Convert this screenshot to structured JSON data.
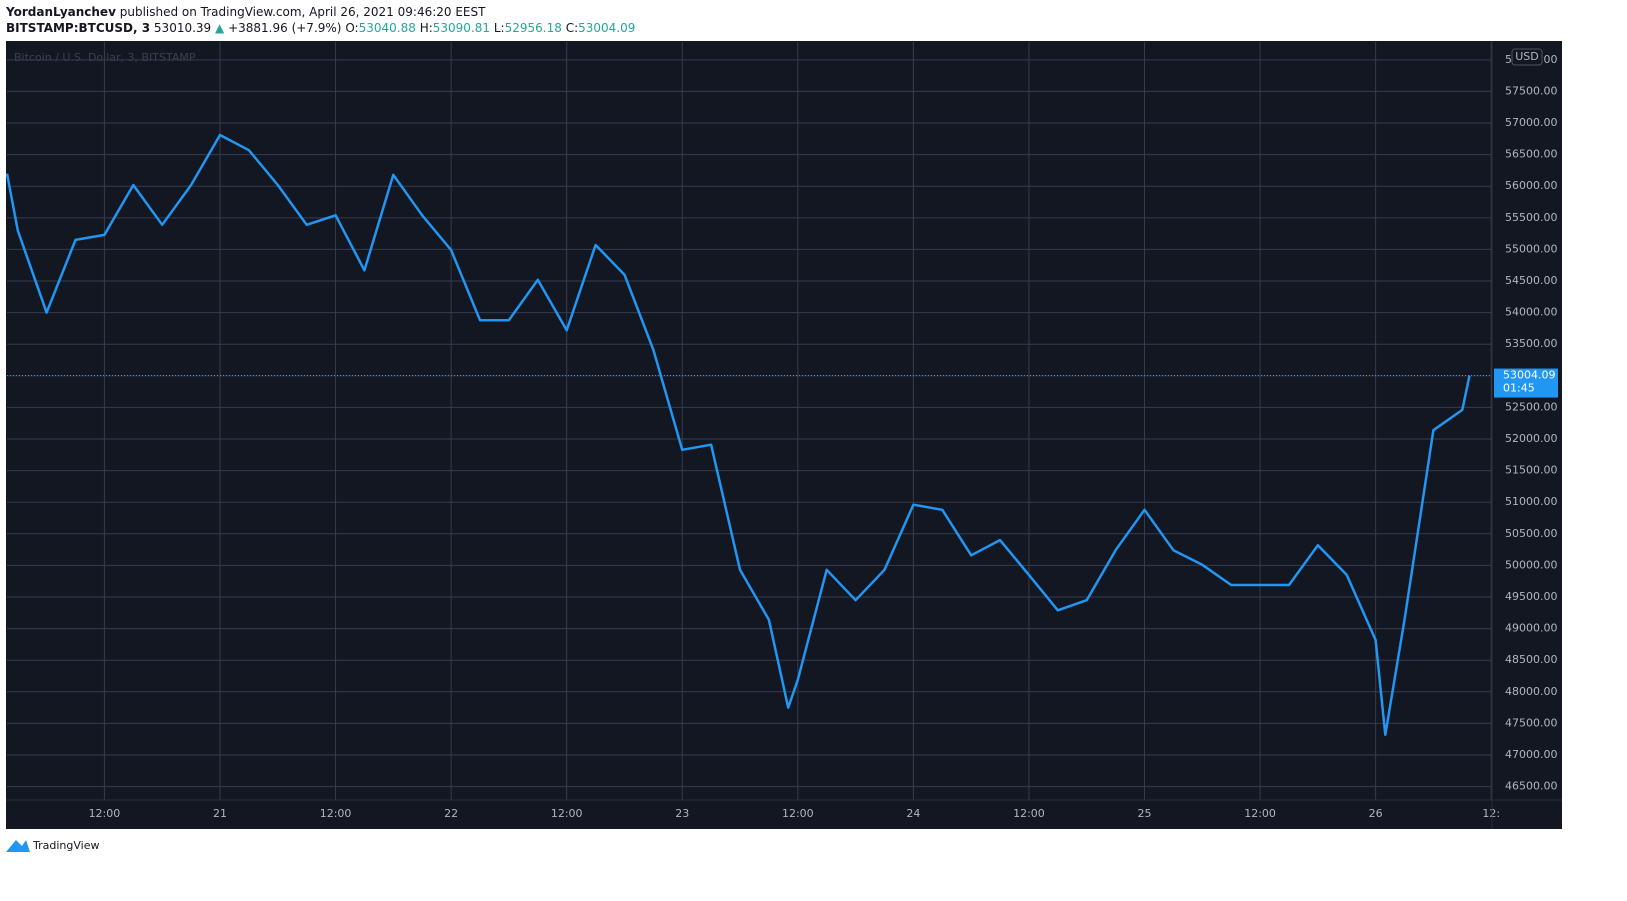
{
  "header": {
    "author": "YordanLyanchev",
    "published": "published on TradingView.com, April 26, 2021 09:46:20 EEST",
    "symbol": "BITSTAMP:BTCUSD, 3",
    "last": "53010.39",
    "arrow": "▲",
    "change": "+3881.96 (+7.9%)",
    "open_label": "O:",
    "open": "53040.88",
    "high_label": "H:",
    "high": "53090.81",
    "low_label": "L:",
    "low": "52956.18",
    "close_label": "C:",
    "close": "53004.09"
  },
  "chart_data": {
    "type": "line",
    "watermark": "Bitcoin / U.S. Dollar, 3, BITSTAMP",
    "currency": "USD",
    "countdown": "01:45",
    "brand": "TradingView",
    "background": "#131722",
    "grid": true,
    "grid_color": "#363c4e",
    "xlim": [
      "2021-04-20T01:53",
      "2021-04-26T12:05"
    ],
    "xticks": [
      {
        "value": "2021-04-20T12:00",
        "label": "12:00"
      },
      {
        "value": "2021-04-21T00:00",
        "label": "21"
      },
      {
        "value": "2021-04-21T12:00",
        "label": "12:00"
      },
      {
        "value": "2021-04-22T00:00",
        "label": "22"
      },
      {
        "value": "2021-04-22T12:00",
        "label": "12:00"
      },
      {
        "value": "2021-04-23T00:00",
        "label": "23"
      },
      {
        "value": "2021-04-23T12:00",
        "label": "12:00"
      },
      {
        "value": "2021-04-24T00:00",
        "label": "24"
      },
      {
        "value": "2021-04-24T12:00",
        "label": "12:00"
      },
      {
        "value": "2021-04-25T00:00",
        "label": "25"
      },
      {
        "value": "2021-04-25T12:00",
        "label": "12:00"
      },
      {
        "value": "2021-04-26T00:00",
        "label": "26"
      },
      {
        "value": "2021-04-26T12:00",
        "label": "12:"
      }
    ],
    "ylim": [
      46288,
      58282
    ],
    "yticks": [
      {
        "value": 46500,
        "label": "46500.00"
      },
      {
        "value": 47000,
        "label": "47000.00"
      },
      {
        "value": 47500,
        "label": "47500.00"
      },
      {
        "value": 48000,
        "label": "48000.00"
      },
      {
        "value": 48500,
        "label": "48500.00"
      },
      {
        "value": 49000,
        "label": "49000.00"
      },
      {
        "value": 49500,
        "label": "49500.00"
      },
      {
        "value": 50000,
        "label": "50000.00"
      },
      {
        "value": 50500,
        "label": "50500.00"
      },
      {
        "value": 51000,
        "label": "51000.00"
      },
      {
        "value": 51500,
        "label": "51500.00"
      },
      {
        "value": 52000,
        "label": "52000.00"
      },
      {
        "value": 52500,
        "label": "52500.00"
      },
      {
        "value": 53000,
        "label": "53000.00"
      },
      {
        "value": 53500,
        "label": "53500.00"
      },
      {
        "value": 54000,
        "label": "54000.00"
      },
      {
        "value": 54500,
        "label": "54500.00"
      },
      {
        "value": 55000,
        "label": "55000.00"
      },
      {
        "value": 55500,
        "label": "55500.00"
      },
      {
        "value": 56000,
        "label": "56000.00"
      },
      {
        "value": 56500,
        "label": "56500.00"
      },
      {
        "value": 57000,
        "label": "57000.00"
      },
      {
        "value": 57500,
        "label": "57500.00"
      },
      {
        "value": 58000,
        "label": "58000.00"
      }
    ],
    "series": [
      {
        "name": "BTCUSD",
        "color": "#2196f3",
        "x": [
          "2021-04-20T01:53",
          "2021-04-20T03:00",
          "2021-04-20T06:00",
          "2021-04-20T09:00",
          "2021-04-20T12:00",
          "2021-04-20T15:00",
          "2021-04-20T18:00",
          "2021-04-20T21:00",
          "2021-04-21T00:00",
          "2021-04-21T03:00",
          "2021-04-21T06:00",
          "2021-04-21T09:00",
          "2021-04-21T12:00",
          "2021-04-21T15:00",
          "2021-04-21T18:00",
          "2021-04-21T21:00",
          "2021-04-22T00:00",
          "2021-04-22T03:00",
          "2021-04-22T06:00",
          "2021-04-22T09:00",
          "2021-04-22T12:00",
          "2021-04-22T15:00",
          "2021-04-22T18:00",
          "2021-04-22T21:00",
          "2021-04-23T00:00",
          "2021-04-23T03:00",
          "2021-04-23T06:00",
          "2021-04-23T09:00",
          "2021-04-23T11:00",
          "2021-04-23T12:00",
          "2021-04-23T15:00",
          "2021-04-23T18:00",
          "2021-04-23T21:00",
          "2021-04-24T00:00",
          "2021-04-24T03:00",
          "2021-04-24T06:00",
          "2021-04-24T09:00",
          "2021-04-24T12:00",
          "2021-04-24T15:00",
          "2021-04-24T18:00",
          "2021-04-24T21:00",
          "2021-04-25T00:00",
          "2021-04-25T03:00",
          "2021-04-25T06:00",
          "2021-04-25T09:00",
          "2021-04-25T12:00",
          "2021-04-25T15:00",
          "2021-04-25T18:00",
          "2021-04-25T21:00",
          "2021-04-26T00:00",
          "2021-04-26T01:00",
          "2021-04-26T03:00",
          "2021-04-26T06:00",
          "2021-04-26T09:00",
          "2021-04-26T09:45"
        ],
        "values": [
          56200,
          55300,
          54000,
          55150,
          55230,
          56020,
          55390,
          56020,
          56810,
          56570,
          56020,
          55390,
          55540,
          54670,
          56180,
          55540,
          54990,
          53880,
          53880,
          54520,
          53720,
          55070,
          54600,
          53410,
          51830,
          51910,
          49930,
          49140,
          47750,
          48190,
          49930,
          49450,
          49930,
          50960,
          50880,
          50160,
          50400,
          49850,
          49290,
          49450,
          50240,
          50880,
          50240,
          50010,
          49690,
          49690,
          49690,
          50320,
          49850,
          48820,
          47320,
          49140,
          52140,
          52460,
          53004.09
        ]
      }
    ]
  }
}
